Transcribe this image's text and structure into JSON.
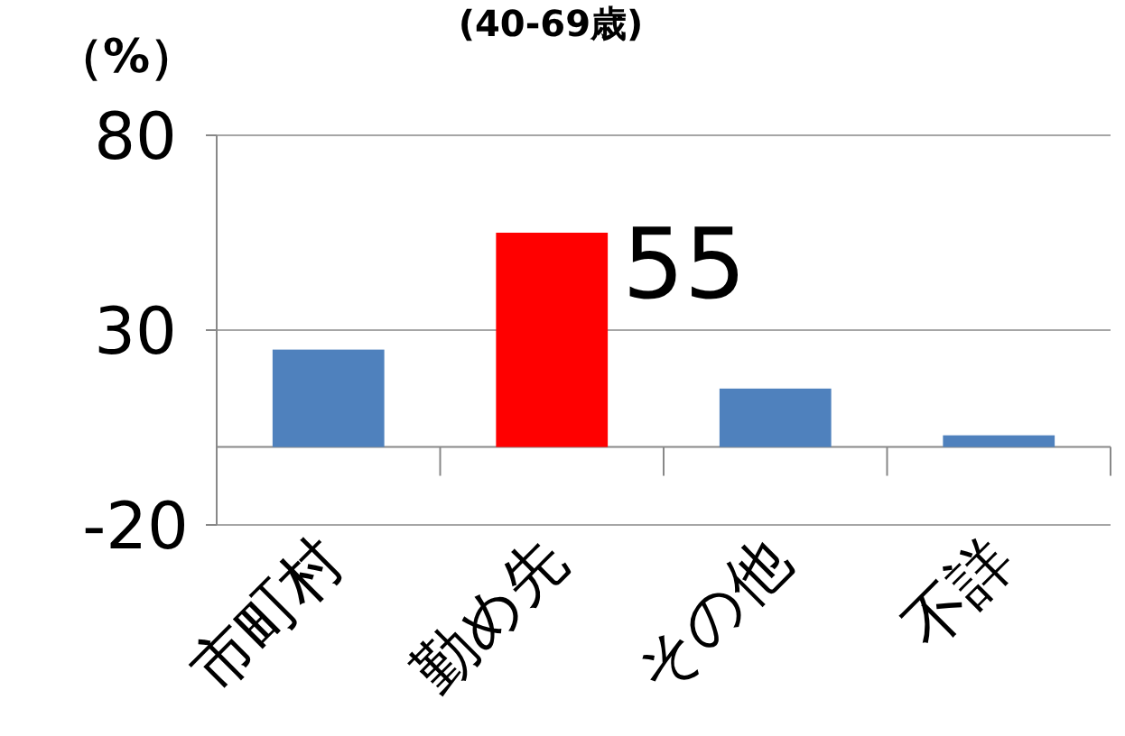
{
  "chart_data": {
    "type": "bar",
    "title": "(40-69歳)",
    "ylabel": "（%）",
    "categories": [
      "市町村",
      "勤め先",
      "その他",
      "不詳"
    ],
    "values": [
      25,
      55,
      15,
      3
    ],
    "colors": [
      "#4f81bd",
      "#ff0000",
      "#4f81bd",
      "#4f81bd"
    ],
    "value_labels": [
      null,
      "55",
      null,
      null
    ],
    "ylim": [
      -20,
      80
    ],
    "yticks": [
      -20,
      30,
      80
    ],
    "grid": "y"
  }
}
